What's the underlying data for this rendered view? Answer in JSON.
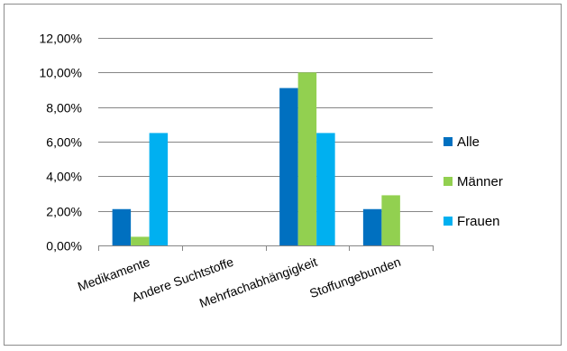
{
  "chart_data": {
    "type": "bar",
    "categories": [
      "Medikamente",
      "Andere Suchtstoffe",
      "Mehrfachabhängigkeit",
      "Stoffungebunden"
    ],
    "series": [
      {
        "name": "Alle",
        "color": "#0070c0",
        "values": [
          0.021,
          0.0,
          0.091,
          0.021
        ]
      },
      {
        "name": "Männer",
        "color": "#92d050",
        "values": [
          0.005,
          0.0,
          0.1,
          0.029
        ]
      },
      {
        "name": "Frauen",
        "color": "#00b0f0",
        "values": [
          0.065,
          0.0,
          0.065,
          0.0
        ]
      }
    ],
    "y_ticks": [
      "0,00%",
      "2,00%",
      "4,00%",
      "6,00%",
      "8,00%",
      "10,00%",
      "12,00%"
    ],
    "ylim": [
      0,
      0.12
    ],
    "grid": true,
    "legend_position": "right"
  }
}
